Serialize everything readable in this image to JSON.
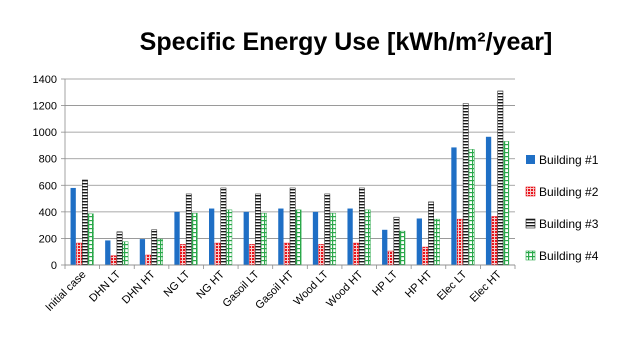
{
  "chart_data": {
    "type": "bar",
    "title": "Specific Energy Use [kWh/m²/year]",
    "xlabel": "",
    "ylabel": "",
    "ylim": [
      0,
      1400
    ],
    "yticks": [
      0,
      200,
      400,
      600,
      800,
      1000,
      1200,
      1400
    ],
    "grid": true,
    "legend_position": "right",
    "categories": [
      "Initial case",
      "DHN LT",
      "DHN HT",
      "NG LT",
      "NG HT",
      "Gasoil LT",
      "Gasoil HT",
      "Wood LT",
      "Wood HT",
      "HP LT",
      "HP HT",
      "Elec LT",
      "Elec HT"
    ],
    "series": [
      {
        "name": "Building #1",
        "color": "#1f6fc5",
        "pattern": "solid",
        "values": [
          580,
          185,
          195,
          400,
          425,
          400,
          425,
          400,
          425,
          265,
          350,
          885,
          965
        ]
      },
      {
        "name": "Building #2",
        "color": "#e8141c",
        "pattern": "dotted",
        "values": [
          165,
          70,
          75,
          155,
          165,
          155,
          165,
          155,
          165,
          105,
          135,
          345,
          365
        ]
      },
      {
        "name": "Building #3",
        "color": "#1a1a1a",
        "pattern": "horizontal-stripes",
        "values": [
          640,
          250,
          265,
          535,
          580,
          535,
          580,
          535,
          580,
          360,
          475,
          1215,
          1310
        ]
      },
      {
        "name": "Building #4",
        "color": "#2aa84a",
        "pattern": "grid",
        "values": [
          385,
          175,
          195,
          390,
          415,
          390,
          415,
          390,
          415,
          255,
          345,
          870,
          930
        ]
      }
    ]
  }
}
